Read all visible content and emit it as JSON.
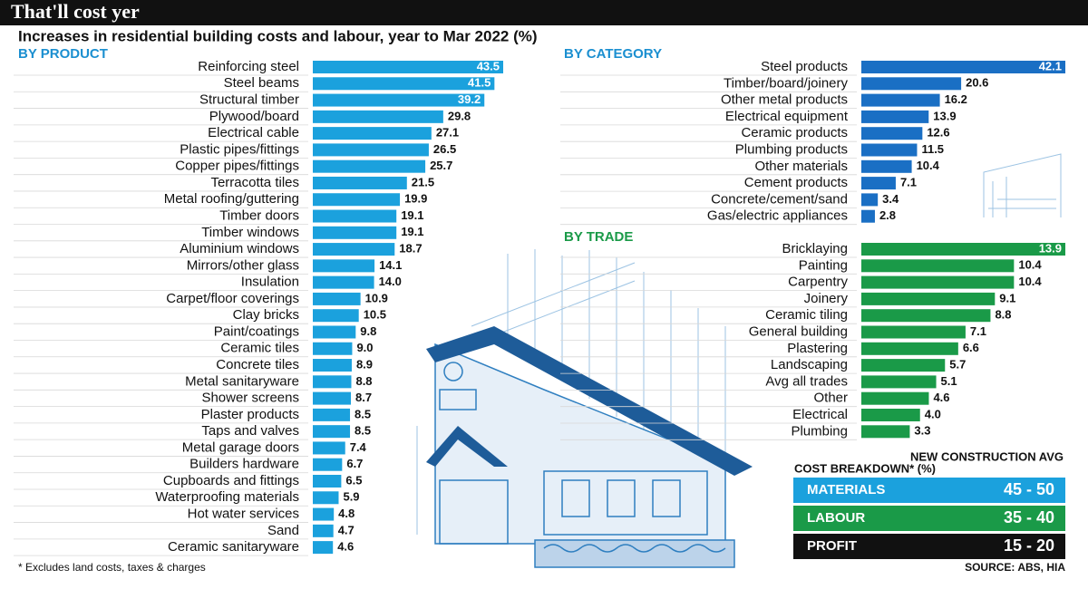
{
  "title": "That'll cost yer",
  "subtitle": "Increases in residential building costs and labour, year to Mar 2022 (%)",
  "chart_data": [
    {
      "type": "bar",
      "orientation": "horizontal",
      "title": "BY PRODUCT",
      "color": "#1ba1dd",
      "title_color": "#1b8fd0",
      "categories": [
        "Reinforcing steel",
        "Steel beams",
        "Structural timber",
        "Plywood/board",
        "Electrical cable",
        "Plastic pipes/fittings",
        "Copper pipes/fittings",
        "Terracotta tiles",
        "Metal roofing/guttering",
        "Timber doors",
        "Timber windows",
        "Aluminium windows",
        "Mirrors/other glass",
        "Insulation",
        "Carpet/floor coverings",
        "Clay bricks",
        "Paint/coatings",
        "Ceramic tiles",
        "Concrete tiles",
        "Metal sanitaryware",
        "Shower screens",
        "Plaster products",
        "Taps and valves",
        "Metal garage doors",
        "Builders hardware",
        "Cupboards and fittings",
        "Waterproofing materials",
        "Hot water services",
        "Sand",
        "Ceramic sanitaryware"
      ],
      "values": [
        43.5,
        41.5,
        39.2,
        29.8,
        27.1,
        26.5,
        25.7,
        21.5,
        19.9,
        19.1,
        19.1,
        18.7,
        14.1,
        14.0,
        10.9,
        10.5,
        9.8,
        9.0,
        8.9,
        8.8,
        8.7,
        8.5,
        8.5,
        7.4,
        6.7,
        6.5,
        5.9,
        4.8,
        4.7,
        4.6
      ],
      "value_labels": [
        "43.5",
        "41.5",
        "39.2",
        "29.8",
        "27.1",
        "26.5",
        "25.7",
        "21.5",
        "19.9",
        "19.1",
        "19.1",
        "18.7",
        "14.1",
        "14.0",
        "10.9",
        "10.5",
        "9.8",
        "9.0",
        "8.9",
        "8.8",
        "8.7",
        "8.5",
        "8.5",
        "7.4",
        "6.7",
        "6.5",
        "5.9",
        "4.8",
        "4.7",
        "4.6"
      ]
    },
    {
      "type": "bar",
      "orientation": "horizontal",
      "title": "BY CATEGORY",
      "color": "#1a6fc4",
      "title_color": "#1b8fd0",
      "categories": [
        "Steel products",
        "Timber/board/joinery",
        "Other metal products",
        "Electrical equipment",
        "Ceramic products",
        "Plumbing products",
        "Other materials",
        "Cement products",
        "Concrete/cement/sand",
        "Gas/electric appliances"
      ],
      "values": [
        42.1,
        20.6,
        16.2,
        13.9,
        12.6,
        11.5,
        10.4,
        7.1,
        3.4,
        2.8
      ]
    },
    {
      "type": "bar",
      "orientation": "horizontal",
      "title": "BY TRADE",
      "color": "#1a9a48",
      "title_color": "#1a9a48",
      "categories": [
        "Bricklaying",
        "Painting",
        "Carpentry",
        "Joinery",
        "Ceramic tiling",
        "General building",
        "Plastering",
        "Landscaping",
        "Avg all trades",
        "Other",
        "Electrical",
        "Plumbing"
      ],
      "values": [
        13.9,
        10.4,
        10.4,
        9.1,
        8.8,
        7.1,
        6.6,
        5.7,
        5.1,
        4.6,
        4.0,
        3.3
      ],
      "value_labels": [
        "13.9",
        "10.4",
        "10.4",
        "9.1",
        "8.8",
        "7.1",
        "6.6",
        "5.7",
        "5.1",
        "4.6",
        "4.0",
        "3.3"
      ]
    }
  ],
  "cost_breakdown": {
    "title_line1": "NEW CONSTRUCTION AVG",
    "title_line2": "COST BREAKDOWN* (%)",
    "rows": [
      {
        "label": "MATERIALS",
        "value": "45 - 50",
        "color": "#1ba1dd"
      },
      {
        "label": "LABOUR",
        "value": "35 - 40",
        "color": "#1a9a48"
      },
      {
        "label": "PROFIT",
        "value": "15 - 20",
        "color": "#111111"
      }
    ]
  },
  "footnote": "* Excludes land costs, taxes & charges",
  "source": "SOURCE: ABS, HIA"
}
